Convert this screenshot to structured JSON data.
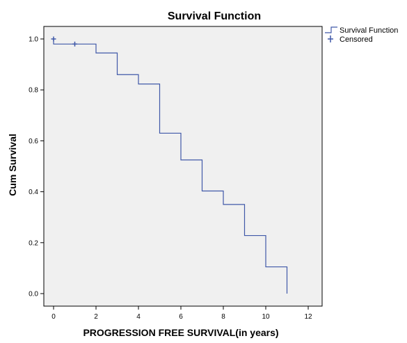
{
  "chart_data": {
    "type": "line",
    "title": "Survival Function",
    "xlabel": "PROGRESSION FREE SURVIVAL(in years)",
    "ylabel": "Cum Survival",
    "xlim": [
      0,
      12
    ],
    "ylim": [
      0.0,
      1.0
    ],
    "x_ticks": [
      0,
      2,
      4,
      6,
      8,
      10,
      12
    ],
    "y_ticks": [
      0.0,
      0.2,
      0.4,
      0.6,
      0.8,
      1.0
    ],
    "x_tick_labels": [
      "0",
      "2",
      "4",
      "6",
      "8",
      "10",
      "12"
    ],
    "y_tick_labels": [
      "0.0",
      "0.2",
      "0.4",
      "0.6",
      "0.8",
      "1.0"
    ],
    "grid": false,
    "legend_position": "top-right-outside",
    "series": [
      {
        "name": "Survival Function",
        "style": "step",
        "color": "#3f58a8",
        "x": [
          0,
          0,
          2,
          3,
          4,
          5,
          6,
          7,
          8,
          9,
          10,
          11
        ],
        "y": [
          1.0,
          0.98,
          0.945,
          0.86,
          0.823,
          0.63,
          0.525,
          0.403,
          0.35,
          0.228,
          0.105,
          0.0
        ]
      },
      {
        "name": "Censored",
        "style": "marker",
        "marker": "plus",
        "color": "#3f58a8",
        "x": [
          0,
          1
        ],
        "y": [
          1.0,
          0.98
        ]
      }
    ]
  }
}
